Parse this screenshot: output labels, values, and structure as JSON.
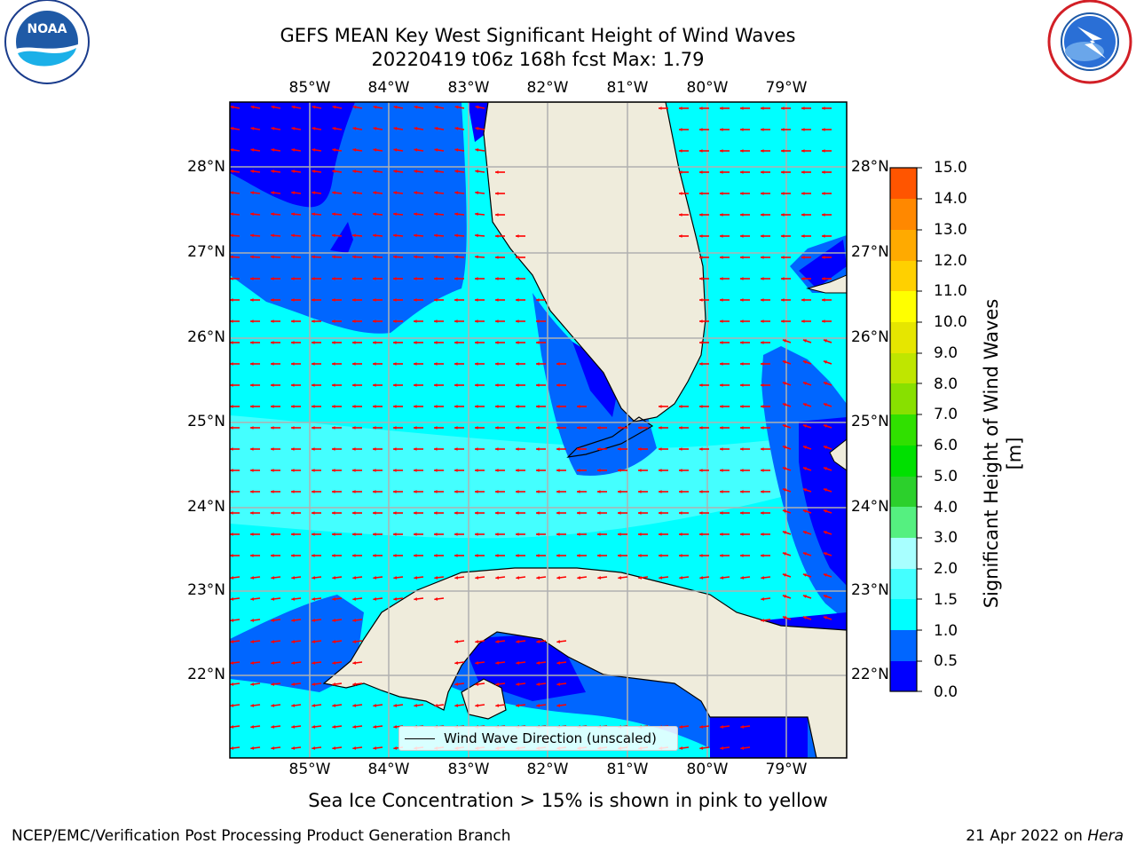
{
  "title_line1": "GEFS MEAN Key West Significant Height of Wind Waves",
  "title_line2": "20220419 t06z 168h fcst   Max: 1.79",
  "x_ticks": [
    "85°W",
    "84°W",
    "83°W",
    "82°W",
    "81°W",
    "80°W",
    "79°W"
  ],
  "y_ticks": [
    "28°N",
    "27°N",
    "26°N",
    "25°N",
    "24°N",
    "23°N",
    "22°N"
  ],
  "colorbar": {
    "label": "Significant Height of Wind Waves [m]",
    "ticks": [
      "15.0",
      "14.0",
      "13.0",
      "12.0",
      "11.0",
      "10.0",
      "9.0",
      "8.0",
      "7.0",
      "6.0",
      "5.0",
      "4.0",
      "3.0",
      "2.0",
      "1.5",
      "1.0",
      "0.5",
      "0.0"
    ],
    "colors_bottom_to_top": [
      "#0000ff",
      "#0066ff",
      "#00ffff",
      "#44ffff",
      "#a8ffff",
      "#55f080",
      "#2cd02c",
      "#00e000",
      "#30e000",
      "#88e000",
      "#bfe600",
      "#e6e600",
      "#ffff00",
      "#ffd000",
      "#ffaa00",
      "#ff8800",
      "#ff5500",
      "#ff2200",
      "#ff0000"
    ]
  },
  "legend_label": "Wind Wave Direction (unscaled)",
  "ice_note": "Sea Ice Concentration > 15% is shown in pink to yellow",
  "footer_left": "NCEP/EMC/Verification Post Processing Product Generation Branch",
  "footer_date": "21 Apr 2022 on",
  "footer_machine": "Hera",
  "logos": {
    "left": {
      "name": "noaa-logo",
      "text": "NOAA"
    },
    "right": {
      "name": "national-weather-service-logo",
      "text": "NATIONAL WEATHER SERVICE"
    }
  },
  "colors": {
    "land": "#efecdc",
    "arrow": "#ff0000",
    "grid": "#b0b0b0",
    "ocean_low": "#0000ff",
    "ocean_mid": "#0066ff",
    "ocean_high": "#00ffff",
    "ocean_higher": "#44ffff"
  }
}
